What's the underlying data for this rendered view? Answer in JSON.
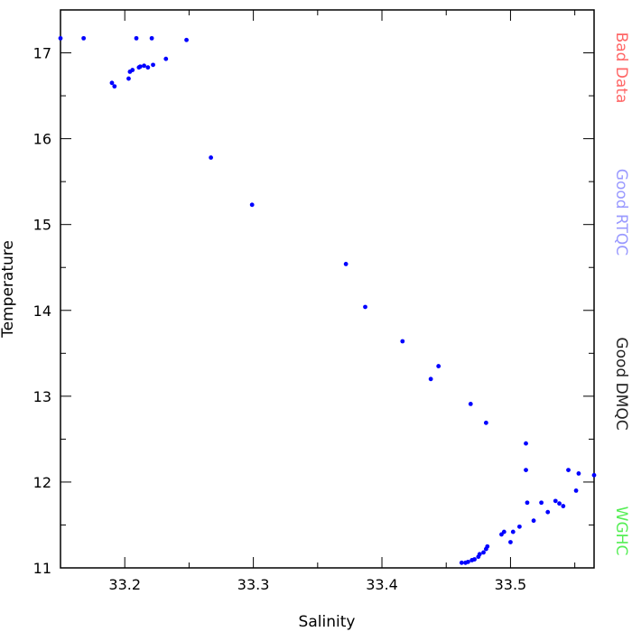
{
  "chart_data": {
    "type": "scatter",
    "xlabel": "Salinity",
    "ylabel": "Temperature",
    "xlim": [
      33.15,
      33.565
    ],
    "ylim": [
      11.0,
      17.5
    ],
    "x_ticks": [
      33.2,
      33.3,
      33.4,
      33.5
    ],
    "x_tick_labels": [
      "33.2",
      "33.3",
      "33.4",
      "33.5"
    ],
    "y_ticks": [
      11,
      12,
      13,
      14,
      15,
      16,
      17
    ],
    "y_tick_labels": [
      "11",
      "12",
      "13",
      "14",
      "15",
      "16",
      "17"
    ],
    "grid": false,
    "point_color": "#0000ff",
    "series": [
      {
        "points": [
          [
            33.15,
            17.17
          ],
          [
            33.168,
            17.17
          ],
          [
            33.209,
            17.17
          ],
          [
            33.221,
            17.17
          ],
          [
            33.248,
            17.15
          ],
          [
            33.19,
            16.65
          ],
          [
            33.192,
            16.61
          ],
          [
            33.203,
            16.7
          ],
          [
            33.204,
            16.78
          ],
          [
            33.206,
            16.8
          ],
          [
            33.211,
            16.83
          ],
          [
            33.212,
            16.84
          ],
          [
            33.215,
            16.85
          ],
          [
            33.218,
            16.83
          ],
          [
            33.222,
            16.86
          ],
          [
            33.232,
            16.93
          ],
          [
            33.267,
            15.78
          ],
          [
            33.299,
            15.23
          ],
          [
            33.372,
            14.54
          ],
          [
            33.387,
            14.04
          ],
          [
            33.416,
            13.64
          ],
          [
            33.438,
            13.2
          ],
          [
            33.444,
            13.35
          ],
          [
            33.469,
            12.91
          ],
          [
            33.481,
            12.69
          ],
          [
            33.512,
            12.45
          ],
          [
            33.512,
            12.14
          ],
          [
            33.513,
            11.76
          ],
          [
            33.545,
            12.14
          ],
          [
            33.553,
            12.1
          ],
          [
            33.565,
            12.08
          ],
          [
            33.551,
            11.9
          ],
          [
            33.524,
            11.76
          ],
          [
            33.535,
            11.78
          ],
          [
            33.538,
            11.75
          ],
          [
            33.541,
            11.72
          ],
          [
            33.529,
            11.65
          ],
          [
            33.518,
            11.55
          ],
          [
            33.507,
            11.48
          ],
          [
            33.502,
            11.42
          ],
          [
            33.495,
            11.42
          ],
          [
            33.493,
            11.39
          ],
          [
            33.5,
            11.3
          ],
          [
            33.482,
            11.25
          ],
          [
            33.481,
            11.22
          ],
          [
            33.479,
            11.18
          ],
          [
            33.476,
            11.16
          ],
          [
            33.475,
            11.13
          ],
          [
            33.472,
            11.1
          ],
          [
            33.47,
            11.09
          ],
          [
            33.467,
            11.07
          ],
          [
            33.465,
            11.06
          ],
          [
            33.462,
            11.06
          ]
        ]
      }
    ],
    "right_legend": [
      {
        "label": "Bad Data",
        "color": "#ff6666"
      },
      {
        "label": "Good RTQC",
        "color": "#9999ff"
      },
      {
        "label": "Good DMQC",
        "color": "#222222"
      },
      {
        "label": "WGHC",
        "color": "#55ee55"
      }
    ]
  }
}
